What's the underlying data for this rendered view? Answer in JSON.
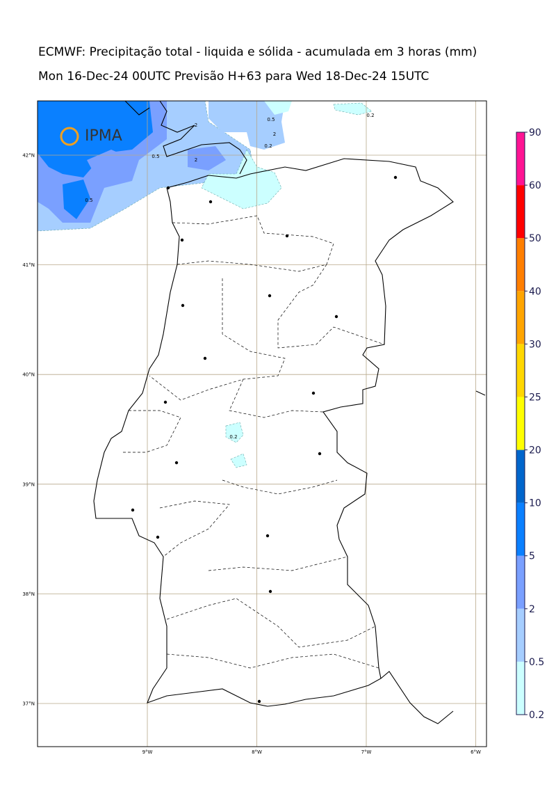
{
  "title": "ECMWF: Precipitação total - liquida e sólida - acumulada em 3 horas (mm)",
  "subtitle": "Mon 16-Dec-24 00UTC Previsão H+63 para Wed 18-Dec-24 15UTC",
  "logo": "IPMA",
  "map": {
    "lat_ticks": [
      {
        "value": 42,
        "label": "42°N"
      },
      {
        "value": 41,
        "label": "41°N"
      },
      {
        "value": 40,
        "label": "40°N"
      },
      {
        "value": 39,
        "label": "39°N"
      },
      {
        "value": 38,
        "label": "38°N"
      },
      {
        "value": 37,
        "label": "37°N"
      }
    ],
    "lon_ticks": [
      {
        "value": -9,
        "label": "9°W"
      },
      {
        "value": -8,
        "label": "8°W"
      },
      {
        "value": -7,
        "label": "7°W"
      },
      {
        "value": -6,
        "label": "6°W"
      }
    ]
  },
  "colorbar": {
    "levels": [
      0.2,
      0.5,
      2,
      5,
      10,
      20,
      25,
      30,
      40,
      50,
      60,
      90
    ],
    "colors": [
      "#ccffff",
      "#a6ceff",
      "#7aa0ff",
      "#0a80ff",
      "#0066cc",
      "#ffff00",
      "#ffd700",
      "#ffa500",
      "#ff7f00",
      "#ff0000",
      "#ff1493"
    ]
  },
  "contour_labels": [
    "0.2",
    "0.5",
    "2",
    "0.2",
    "0.5",
    "2",
    "2",
    "0.5",
    "0.2"
  ]
}
